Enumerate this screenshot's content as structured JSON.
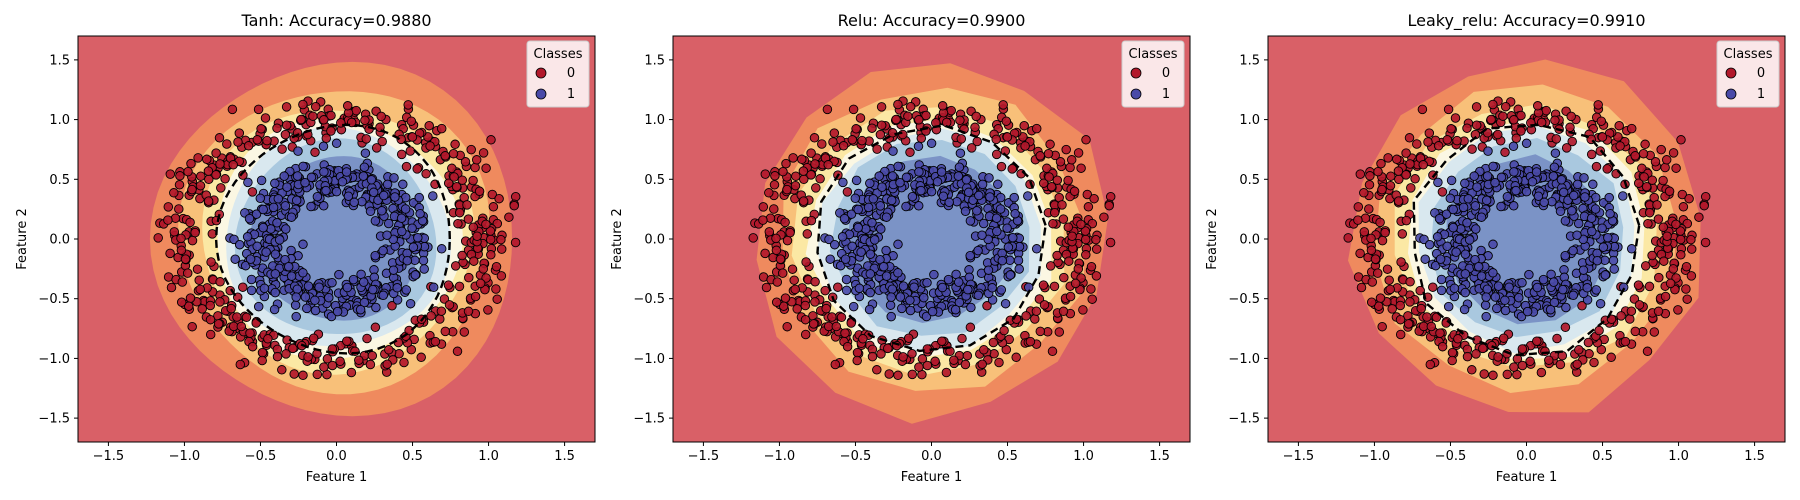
{
  "colors": {
    "class0": "#b2182b",
    "class1": "#4a4aa8",
    "outer_region": "#d96067",
    "inner_region": "#7b93c6",
    "boundary": "#000000",
    "contour_bands": [
      "#d96067",
      "#ef8a5e",
      "#f8c079",
      "#fbe8a4",
      "#fbf7e3",
      "#d9e8ef",
      "#a9c8df",
      "#7b93c6"
    ]
  },
  "chart_data": [
    {
      "type": "scatter",
      "title": "Tanh: Accuracy=0.9880",
      "xlabel": "Feature 1",
      "ylabel": "Feature 2",
      "xlim": [
        -1.7,
        1.7
      ],
      "ylim": [
        -1.7,
        1.7
      ],
      "xticks": [
        "−1.5",
        "−1.0",
        "−0.5",
        "0.0",
        "0.5",
        "1.0",
        "1.5"
      ],
      "yticks": [
        "−1.5",
        "−1.0",
        "−0.5",
        "0.0",
        "0.5",
        "1.0",
        "1.5"
      ],
      "legend": {
        "title": "Classes",
        "entries": [
          "0",
          "1"
        ],
        "location": "upper-right"
      },
      "decision_boundary": {
        "rx": 0.78,
        "ry": 0.76,
        "type": "smooth ellipse"
      },
      "series": [
        {
          "name": "0",
          "distribution": "ring",
          "radius_range": [
            0.8,
            1.2
          ],
          "count": 500
        },
        {
          "name": "1",
          "distribution": "disk",
          "radius_range": [
            0.0,
            0.7
          ],
          "count": 500
        }
      ],
      "grid": false
    },
    {
      "type": "scatter",
      "title": "Relu: Accuracy=0.9900",
      "xlabel": "Feature 1",
      "ylabel": "Feature 2",
      "xlim": [
        -1.7,
        1.7
      ],
      "ylim": [
        -1.7,
        1.7
      ],
      "xticks": [
        "−1.5",
        "−1.0",
        "−0.5",
        "0.0",
        "0.5",
        "1.0",
        "1.5"
      ],
      "yticks": [
        "−1.5",
        "−1.0",
        "−0.5",
        "0.0",
        "0.5",
        "1.0",
        "1.5"
      ],
      "legend": {
        "title": "Classes",
        "entries": [
          "0",
          "1"
        ],
        "location": "upper-right"
      },
      "decision_boundary": {
        "rx": 0.77,
        "ry": 0.76,
        "type": "polygonal"
      },
      "series": [
        {
          "name": "0",
          "distribution": "ring",
          "radius_range": [
            0.8,
            1.2
          ],
          "count": 500
        },
        {
          "name": "1",
          "distribution": "disk",
          "radius_range": [
            0.0,
            0.7
          ],
          "count": 500
        }
      ],
      "grid": false
    },
    {
      "type": "scatter",
      "title": "Leaky_relu: Accuracy=0.9910",
      "xlabel": "Feature 1",
      "ylabel": "Feature 2",
      "xlim": [
        -1.7,
        1.7
      ],
      "ylim": [
        -1.7,
        1.7
      ],
      "xticks": [
        "−1.5",
        "−1.0",
        "−0.5",
        "0.0",
        "0.5",
        "1.0",
        "1.5"
      ],
      "yticks": [
        "−1.5",
        "−1.0",
        "−0.5",
        "0.0",
        "0.5",
        "1.0",
        "1.5"
      ],
      "legend": {
        "title": "Classes",
        "entries": [
          "0",
          "1"
        ],
        "location": "upper-right"
      },
      "decision_boundary": {
        "rx": 0.76,
        "ry": 0.76,
        "type": "polygonal"
      },
      "series": [
        {
          "name": "0",
          "distribution": "ring",
          "radius_range": [
            0.8,
            1.2
          ],
          "count": 500
        },
        {
          "name": "1",
          "distribution": "disk",
          "radius_range": [
            0.0,
            0.7
          ],
          "count": 500
        }
      ],
      "grid": false
    }
  ]
}
